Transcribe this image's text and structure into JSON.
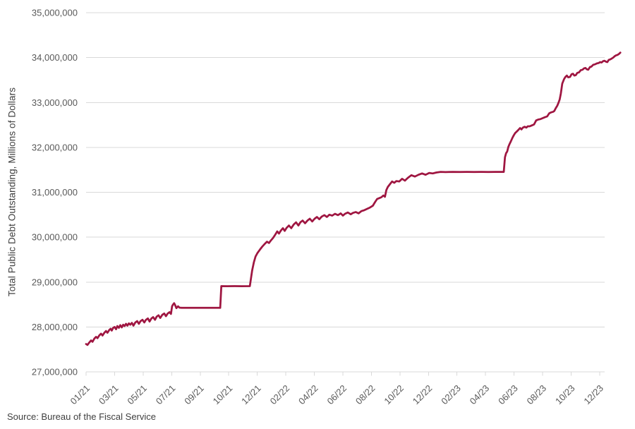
{
  "page": {
    "background": "#ffffff"
  },
  "colors": {
    "line": "#9F1641",
    "grid": "#D9D9D9",
    "axis": "#D9D9D9",
    "tick_text": "#595959",
    "title_text": "#3F3F3F"
  },
  "chart_data": {
    "type": "line",
    "title": "",
    "xlabel": "",
    "ylabel": "Total Public Debt Outstanding, Millions of Dollars",
    "source_note": "Source: Bureau of the Fiscal Service",
    "grid": "horizontal",
    "legend": "none",
    "ylim": [
      27000000,
      35000000
    ],
    "ytick_step": 1000000,
    "y_ticks": [
      {
        "value": 27000000,
        "label": "27,000,000"
      },
      {
        "value": 28000000,
        "label": "28,000,000"
      },
      {
        "value": 29000000,
        "label": "29,000,000"
      },
      {
        "value": 30000000,
        "label": "30,000,000"
      },
      {
        "value": 31000000,
        "label": "31,000,000"
      },
      {
        "value": 32000000,
        "label": "32,000,000"
      },
      {
        "value": 33000000,
        "label": "33,000,000"
      },
      {
        "value": 34000000,
        "label": "34,000,000"
      },
      {
        "value": 35000000,
        "label": "35,000,000"
      }
    ],
    "x_tick_labels": [
      "01/21",
      "03/21",
      "05/21",
      "07/21",
      "09/21",
      "10/21",
      "12/21",
      "02/22",
      "04/22",
      "06/22",
      "08/22",
      "10/22",
      "12/22",
      "02/23",
      "04/23",
      "06/23",
      "08/23",
      "10/23",
      "12/23"
    ],
    "x_unit": "months from 01/21 tick (one x tick every 2 units)",
    "x_domain": [
      0,
      37.45
    ],
    "series": [
      {
        "name": "Total Public Debt Outstanding, Millions of Dollars",
        "color": "#9F1641",
        "stroke_width": 2.75,
        "points": [
          [
            0.0,
            27620000
          ],
          [
            0.1,
            27600000
          ],
          [
            0.22,
            27650000
          ],
          [
            0.35,
            27700000
          ],
          [
            0.45,
            27670000
          ],
          [
            0.58,
            27740000
          ],
          [
            0.7,
            27780000
          ],
          [
            0.8,
            27750000
          ],
          [
            0.92,
            27810000
          ],
          [
            1.05,
            27850000
          ],
          [
            1.15,
            27810000
          ],
          [
            1.28,
            27870000
          ],
          [
            1.4,
            27910000
          ],
          [
            1.5,
            27870000
          ],
          [
            1.62,
            27930000
          ],
          [
            1.72,
            27960000
          ],
          [
            1.8,
            27920000
          ],
          [
            1.9,
            27980000
          ],
          [
            2.0,
            28000000
          ],
          [
            2.1,
            27950000
          ],
          [
            2.19,
            28020000
          ],
          [
            2.3,
            27980000
          ],
          [
            2.4,
            28040000
          ],
          [
            2.5,
            27990000
          ],
          [
            2.6,
            28050000
          ],
          [
            2.7,
            28020000
          ],
          [
            2.8,
            28070000
          ],
          [
            2.9,
            28030000
          ],
          [
            3.0,
            28080000
          ],
          [
            3.1,
            28050000
          ],
          [
            3.21,
            28090000
          ],
          [
            3.32,
            28030000
          ],
          [
            3.45,
            28100000
          ],
          [
            3.58,
            28130000
          ],
          [
            3.7,
            28070000
          ],
          [
            3.82,
            28130000
          ],
          [
            3.95,
            28160000
          ],
          [
            4.08,
            28100000
          ],
          [
            4.2,
            28160000
          ],
          [
            4.33,
            28190000
          ],
          [
            4.45,
            28120000
          ],
          [
            4.58,
            28190000
          ],
          [
            4.7,
            28220000
          ],
          [
            4.83,
            28160000
          ],
          [
            4.95,
            28230000
          ],
          [
            5.08,
            28260000
          ],
          [
            5.2,
            28200000
          ],
          [
            5.34,
            28270000
          ],
          [
            5.48,
            28300000
          ],
          [
            5.6,
            28240000
          ],
          [
            5.72,
            28300000
          ],
          [
            5.85,
            28330000
          ],
          [
            5.95,
            28290000
          ],
          [
            6.03,
            28460000
          ],
          [
            6.1,
            28500000
          ],
          [
            6.17,
            28530000
          ],
          [
            6.25,
            28480000
          ],
          [
            6.33,
            28420000
          ],
          [
            6.45,
            28460000
          ],
          [
            6.55,
            28430000
          ],
          [
            6.7,
            28425000
          ],
          [
            7.3,
            28427000
          ],
          [
            7.9,
            28425000
          ],
          [
            8.5,
            28427000
          ],
          [
            9.1,
            28425000
          ],
          [
            9.4,
            28425000
          ],
          [
            9.48,
            28910000
          ],
          [
            9.9,
            28908000
          ],
          [
            10.4,
            28910000
          ],
          [
            10.9,
            28908000
          ],
          [
            11.48,
            28910000
          ],
          [
            11.56,
            29080000
          ],
          [
            11.64,
            29260000
          ],
          [
            11.76,
            29440000
          ],
          [
            11.88,
            29570000
          ],
          [
            12.02,
            29650000
          ],
          [
            12.18,
            29720000
          ],
          [
            12.35,
            29790000
          ],
          [
            12.52,
            29850000
          ],
          [
            12.68,
            29900000
          ],
          [
            12.82,
            29870000
          ],
          [
            12.96,
            29930000
          ],
          [
            13.1,
            29980000
          ],
          [
            13.25,
            30050000
          ],
          [
            13.4,
            30130000
          ],
          [
            13.52,
            30080000
          ],
          [
            13.66,
            30150000
          ],
          [
            13.8,
            30200000
          ],
          [
            13.92,
            30140000
          ],
          [
            14.06,
            30210000
          ],
          [
            14.22,
            30260000
          ],
          [
            14.38,
            30200000
          ],
          [
            14.55,
            30280000
          ],
          [
            14.72,
            30330000
          ],
          [
            14.88,
            30260000
          ],
          [
            15.02,
            30330000
          ],
          [
            15.18,
            30370000
          ],
          [
            15.35,
            30310000
          ],
          [
            15.52,
            30370000
          ],
          [
            15.68,
            30410000
          ],
          [
            15.85,
            30350000
          ],
          [
            16.02,
            30410000
          ],
          [
            16.18,
            30450000
          ],
          [
            16.35,
            30400000
          ],
          [
            16.52,
            30460000
          ],
          [
            16.7,
            30490000
          ],
          [
            16.88,
            30450000
          ],
          [
            17.05,
            30500000
          ],
          [
            17.25,
            30480000
          ],
          [
            17.45,
            30520000
          ],
          [
            17.65,
            30490000
          ],
          [
            17.85,
            30530000
          ],
          [
            18.0,
            30480000
          ],
          [
            18.15,
            30520000
          ],
          [
            18.35,
            30550000
          ],
          [
            18.55,
            30510000
          ],
          [
            18.7,
            30540000
          ],
          [
            18.9,
            30560000
          ],
          [
            19.1,
            30530000
          ],
          [
            19.3,
            30580000
          ],
          [
            19.5,
            30600000
          ],
          [
            19.7,
            30630000
          ],
          [
            19.9,
            30660000
          ],
          [
            20.1,
            30700000
          ],
          [
            20.25,
            30780000
          ],
          [
            20.4,
            30850000
          ],
          [
            20.55,
            30870000
          ],
          [
            20.7,
            30890000
          ],
          [
            20.84,
            30930000
          ],
          [
            20.95,
            30900000
          ],
          [
            21.05,
            31050000
          ],
          [
            21.15,
            31120000
          ],
          [
            21.3,
            31180000
          ],
          [
            21.45,
            31240000
          ],
          [
            21.6,
            31210000
          ],
          [
            21.75,
            31250000
          ],
          [
            21.95,
            31240000
          ],
          [
            22.15,
            31300000
          ],
          [
            22.35,
            31260000
          ],
          [
            22.55,
            31320000
          ],
          [
            22.8,
            31380000
          ],
          [
            23.05,
            31350000
          ],
          [
            23.3,
            31390000
          ],
          [
            23.55,
            31420000
          ],
          [
            23.8,
            31390000
          ],
          [
            24.05,
            31430000
          ],
          [
            24.3,
            31420000
          ],
          [
            24.55,
            31440000
          ],
          [
            24.85,
            31455000
          ],
          [
            25.2,
            31450000
          ],
          [
            25.7,
            31455000
          ],
          [
            26.2,
            31452000
          ],
          [
            26.7,
            31455000
          ],
          [
            27.2,
            31452000
          ],
          [
            27.7,
            31455000
          ],
          [
            28.2,
            31452000
          ],
          [
            28.7,
            31455000
          ],
          [
            29.28,
            31455000
          ],
          [
            29.36,
            31780000
          ],
          [
            29.44,
            31870000
          ],
          [
            29.52,
            31910000
          ],
          [
            29.6,
            32010000
          ],
          [
            29.68,
            32070000
          ],
          [
            29.78,
            32140000
          ],
          [
            29.88,
            32210000
          ],
          [
            29.98,
            32270000
          ],
          [
            30.08,
            32320000
          ],
          [
            30.18,
            32350000
          ],
          [
            30.3,
            32390000
          ],
          [
            30.42,
            32430000
          ],
          [
            30.52,
            32400000
          ],
          [
            30.62,
            32440000
          ],
          [
            30.74,
            32460000
          ],
          [
            30.86,
            32440000
          ],
          [
            30.96,
            32470000
          ],
          [
            31.1,
            32470000
          ],
          [
            31.25,
            32490000
          ],
          [
            31.4,
            32510000
          ],
          [
            31.55,
            32600000
          ],
          [
            31.7,
            32620000
          ],
          [
            31.85,
            32630000
          ],
          [
            32.0,
            32650000
          ],
          [
            32.15,
            32670000
          ],
          [
            32.32,
            32690000
          ],
          [
            32.47,
            32760000
          ],
          [
            32.6,
            32780000
          ],
          [
            32.72,
            32790000
          ],
          [
            32.82,
            32810000
          ],
          [
            32.92,
            32870000
          ],
          [
            33.03,
            32930000
          ],
          [
            33.12,
            33000000
          ],
          [
            33.2,
            33070000
          ],
          [
            33.28,
            33200000
          ],
          [
            33.38,
            33420000
          ],
          [
            33.5,
            33520000
          ],
          [
            33.6,
            33570000
          ],
          [
            33.7,
            33600000
          ],
          [
            33.8,
            33560000
          ],
          [
            33.92,
            33570000
          ],
          [
            34.03,
            33630000
          ],
          [
            34.13,
            33640000
          ],
          [
            34.23,
            33600000
          ],
          [
            34.33,
            33610000
          ],
          [
            34.43,
            33660000
          ],
          [
            34.55,
            33670000
          ],
          [
            34.68,
            33720000
          ],
          [
            34.8,
            33730000
          ],
          [
            34.9,
            33760000
          ],
          [
            35.0,
            33770000
          ],
          [
            35.1,
            33740000
          ],
          [
            35.2,
            33730000
          ],
          [
            35.32,
            33790000
          ],
          [
            35.42,
            33800000
          ],
          [
            35.55,
            33840000
          ],
          [
            35.67,
            33850000
          ],
          [
            35.8,
            33870000
          ],
          [
            35.93,
            33880000
          ],
          [
            36.03,
            33900000
          ],
          [
            36.13,
            33890000
          ],
          [
            36.24,
            33920000
          ],
          [
            36.34,
            33930000
          ],
          [
            36.44,
            33910000
          ],
          [
            36.54,
            33900000
          ],
          [
            36.64,
            33950000
          ],
          [
            36.74,
            33960000
          ],
          [
            36.85,
            33980000
          ],
          [
            36.95,
            34000000
          ],
          [
            37.05,
            34030000
          ],
          [
            37.15,
            34050000
          ],
          [
            37.25,
            34060000
          ],
          [
            37.35,
            34080000
          ],
          [
            37.45,
            34110000
          ]
        ]
      }
    ]
  }
}
